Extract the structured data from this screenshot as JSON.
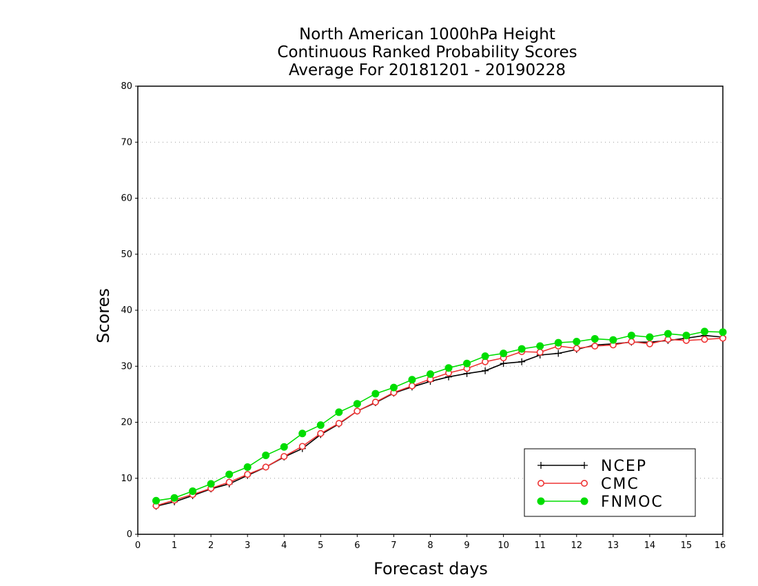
{
  "chart_data": {
    "type": "line",
    "title": [
      "North American 1000hPa Height",
      "Continuous Ranked Probability Scores",
      "Average For 20181201 - 20190228"
    ],
    "xlabel": "Forecast days",
    "ylabel": "Scores",
    "xlim": [
      0,
      16
    ],
    "ylim": [
      0,
      80
    ],
    "x_ticks": [
      "0",
      "1",
      "2",
      "3",
      "4",
      "5",
      "6",
      "7",
      "8",
      "9",
      "10",
      "11",
      "12",
      "13",
      "14",
      "15",
      "16"
    ],
    "y_ticks": [
      "0",
      "10",
      "20",
      "30",
      "40",
      "50",
      "60",
      "70",
      "80"
    ],
    "grid": "horizontal dotted",
    "legend_position": "bottom-right",
    "x": [
      0.5,
      1,
      1.5,
      2,
      2.5,
      3,
      3.5,
      4,
      4.5,
      5,
      5.5,
      6,
      6.5,
      7,
      7.5,
      8,
      8.5,
      9,
      9.5,
      10,
      10.5,
      11,
      11.5,
      12,
      12.5,
      13,
      13.5,
      14,
      14.5,
      15,
      15.5,
      16
    ],
    "series": [
      {
        "name": "NCEP",
        "color": "#000000",
        "marker": "plus",
        "values": [
          5.0,
          5.8,
          6.9,
          8.1,
          9.0,
          10.5,
          12.0,
          13.8,
          15.3,
          17.8,
          19.7,
          22.0,
          23.5,
          25.2,
          26.3,
          27.3,
          28.1,
          28.7,
          29.2,
          30.5,
          30.8,
          32.0,
          32.3,
          33.0,
          33.8,
          34.0,
          34.3,
          34.3,
          34.6,
          35.0,
          35.5,
          35.2
        ]
      },
      {
        "name": "CMC",
        "color": "#ee3333",
        "marker": "open-circle",
        "values": [
          5.1,
          6.1,
          7.1,
          8.2,
          9.3,
          10.7,
          12.0,
          13.9,
          15.7,
          18.0,
          19.8,
          22.0,
          23.6,
          25.3,
          26.5,
          27.7,
          28.8,
          29.6,
          30.8,
          31.5,
          32.6,
          32.5,
          33.6,
          33.2,
          33.6,
          33.8,
          34.4,
          34.0,
          34.8,
          34.6,
          34.8,
          35.0
        ]
      },
      {
        "name": "FNMOC",
        "color": "#00dd00",
        "marker": "filled-circle",
        "values": [
          6.0,
          6.5,
          7.7,
          9.0,
          10.7,
          12.0,
          14.1,
          15.6,
          18.0,
          19.5,
          21.8,
          23.3,
          25.1,
          26.2,
          27.6,
          28.6,
          29.7,
          30.5,
          31.8,
          32.3,
          33.1,
          33.6,
          34.2,
          34.4,
          34.9,
          34.7,
          35.5,
          35.2,
          35.8,
          35.5,
          36.2,
          36.1
        ]
      }
    ]
  }
}
